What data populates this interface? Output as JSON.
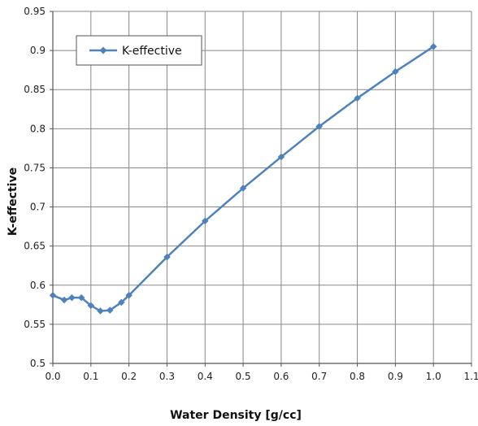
{
  "chart_data": {
    "type": "line",
    "xlabel": "Water Density [g/cc]",
    "ylabel": "K-effective",
    "xlim": [
      0.0,
      1.1
    ],
    "ylim": [
      0.5,
      0.95
    ],
    "xticks": [
      "0.0",
      "0.1",
      "0.2",
      "0.3",
      "0.4",
      "0.5",
      "0.6",
      "0.7",
      "0.8",
      "0.9",
      "1.0",
      "1.1"
    ],
    "yticks": [
      "0.5",
      "0.55",
      "0.6",
      "0.65",
      "0.7",
      "0.75",
      "0.8",
      "0.85",
      "0.9",
      "0.95"
    ],
    "grid": true,
    "legend_position": "top-left",
    "series": [
      {
        "name": "K-effective",
        "color": "#4F81BD",
        "marker": "diamond",
        "x": [
          0.0,
          0.03,
          0.05,
          0.075,
          0.1,
          0.125,
          0.15,
          0.18,
          0.2,
          0.3,
          0.4,
          0.5,
          0.6,
          0.7,
          0.8,
          0.9,
          1.0
        ],
        "y": [
          0.587,
          0.581,
          0.584,
          0.584,
          0.574,
          0.567,
          0.568,
          0.578,
          0.587,
          0.636,
          0.682,
          0.724,
          0.764,
          0.803,
          0.839,
          0.873,
          0.905
        ]
      }
    ]
  }
}
